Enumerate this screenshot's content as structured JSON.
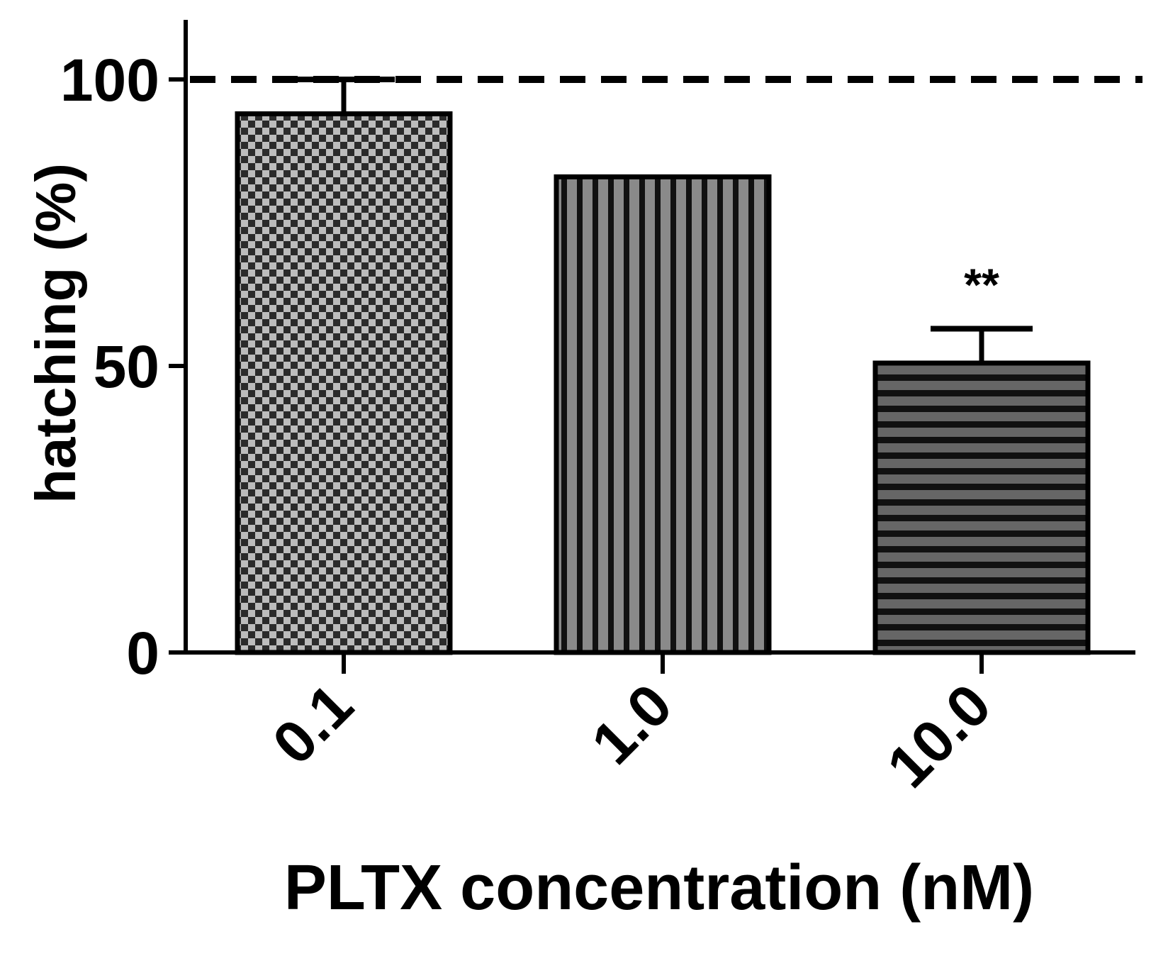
{
  "chart_data": {
    "type": "bar",
    "categories": [
      "0.1",
      "1.0",
      "10.0"
    ],
    "values": [
      94,
      83,
      50.5
    ],
    "errors": [
      6,
      0,
      6
    ],
    "patterns": [
      "checker",
      "vertical-stripes",
      "horizontal-stripes"
    ],
    "annotations": [
      "",
      "",
      "**"
    ],
    "reference_line": 100,
    "xlabel": "PLTX concentration (nM)",
    "ylabel": "hatching (%)",
    "ylim": [
      0,
      110
    ],
    "yticks": [
      "0",
      "50",
      "100"
    ],
    "ytick_values": [
      0,
      50,
      100
    ],
    "grid": false,
    "legend": "none"
  },
  "colors": {
    "checker_light": "#bcbcbc",
    "checker_dark": "#2b2b2b",
    "stripe_light": "#8a8a8a",
    "stripe_dark": "#111111",
    "hstripe_light": "#666666",
    "outline": "#000000"
  }
}
